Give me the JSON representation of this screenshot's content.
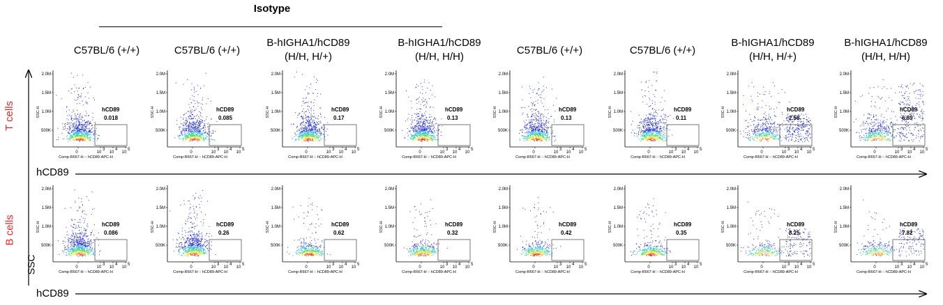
{
  "header": {
    "isotype_label": "Isotype"
  },
  "columns": [
    {
      "line1": "C57BL/6 (+/+)",
      "line2": ""
    },
    {
      "line1": "C57BL/6 (+/+)",
      "line2": ""
    },
    {
      "line1": "B-hIGHA1/hCD89",
      "line2": "(H/H, H/+)"
    },
    {
      "line1": "B-hIGHA1/hCD89",
      "line2": "(H/H, H/H)"
    },
    {
      "line1": "C57BL/6 (+/+)",
      "line2": ""
    },
    {
      "line1": "C57BL/6 (+/+)",
      "line2": ""
    },
    {
      "line1": "B-hIGHA1/hCD89",
      "line2": "(H/H, H/+)"
    },
    {
      "line1": "B-hIGHA1/hCD89",
      "line2": "(H/H, H/H)"
    }
  ],
  "rows": [
    {
      "label": "T cells"
    },
    {
      "label": "B cells"
    }
  ],
  "axes": {
    "y_main_label": "SSC",
    "x_main_label": "hCD89",
    "y_ticks": [
      "2.0M",
      "1.5M",
      "1.0M",
      "500K"
    ],
    "x_ticks": [
      "0",
      "10",
      "10",
      "10"
    ],
    "x_tick_exponents": [
      "3",
      "4",
      "5"
    ],
    "plot_y_title": "SSC-H",
    "plot_x_title": "Comp-R667-H :: hCD89-APC-H"
  },
  "chart_data": {
    "type": "scatter",
    "gate_name": "hCD89",
    "xlabel": "hCD89",
    "ylabel": "SSC",
    "gate_percent": [
      [
        "0.018",
        "0.085",
        "0.17",
        "0.13",
        "0.13",
        "0.11",
        "2.58",
        "6.89"
      ],
      [
        "0.086",
        "0.26",
        "0.62",
        "0.32",
        "0.42",
        "0.35",
        "8.25",
        "7.82"
      ]
    ],
    "colormap": [
      "#1e2bd8",
      "#1cb6e8",
      "#3ddc5a",
      "#f5e23a",
      "#f07a1c",
      "#d81e1e"
    ]
  }
}
